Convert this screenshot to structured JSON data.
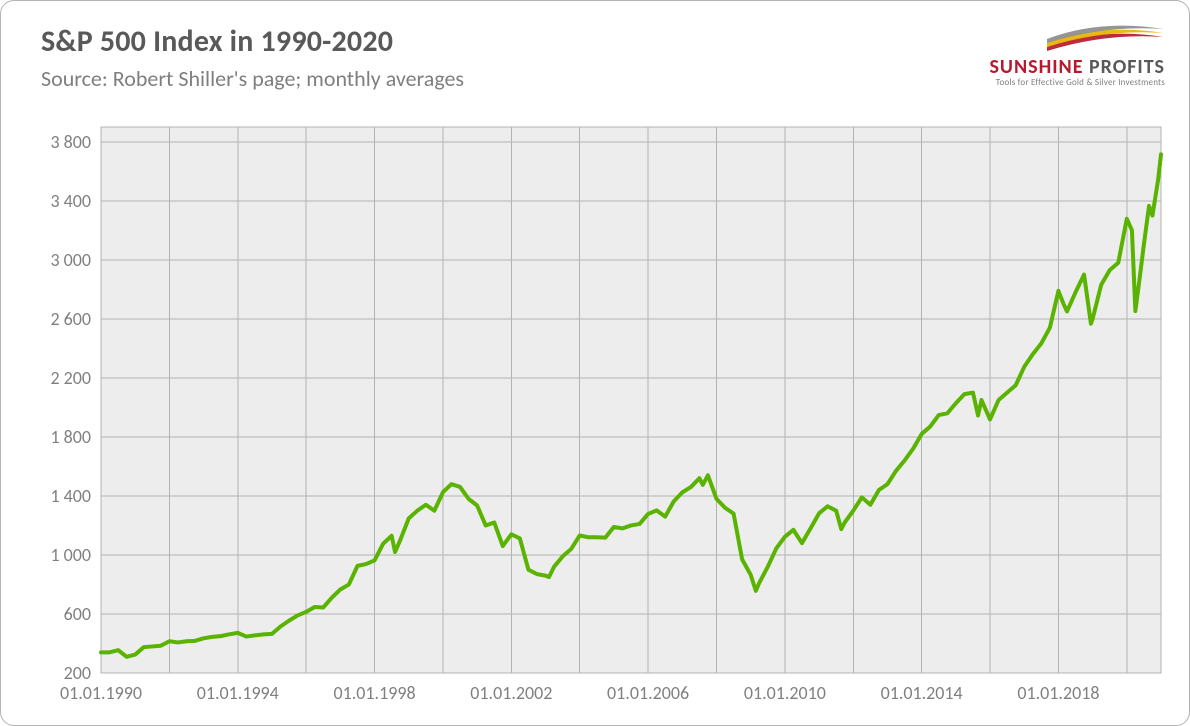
{
  "title": "S&P 500 Index in 1990-2020",
  "subtitle": "Source: Robert Shiller's page; monthly averages",
  "logo": {
    "line1_a": "SUNSHINE ",
    "line1_b": "PROFITS",
    "tagline": "Tools for Effective Gold & Silver Investments",
    "swoosh_colors": [
      "#b8192d",
      "#e8b400",
      "#8c8c8c"
    ]
  },
  "chart": {
    "type": "line",
    "background_color": "#ededed",
    "grid_color": "#b3b3b3",
    "line_color": "#59b300",
    "line_width": 4,
    "text_color": "#7f7f7f",
    "axis_fontsize": 18,
    "y": {
      "min": 200,
      "max": 3900,
      "ticks": [
        200,
        600,
        1000,
        1400,
        1800,
        2200,
        2600,
        3000,
        3400,
        3800
      ]
    },
    "x": {
      "min": 1990.0,
      "max": 2021.0,
      "ticks": [
        1990,
        1994,
        1998,
        2002,
        2006,
        2010,
        2014,
        2018
      ],
      "tick_labels": [
        "01.01.1990",
        "01.01.1994",
        "01.01.1998",
        "01.01.2002",
        "01.01.2006",
        "01.01.2010",
        "01.01.2014",
        "01.01.2018"
      ],
      "gridlines": [
        1990,
        1992,
        1994,
        1996,
        1998,
        2000,
        2002,
        2004,
        2006,
        2008,
        2010,
        2012,
        2014,
        2016,
        2018,
        2020
      ]
    },
    "series": [
      {
        "x": 1990.0,
        "y": 340
      },
      {
        "x": 1990.25,
        "y": 340
      },
      {
        "x": 1990.5,
        "y": 355
      },
      {
        "x": 1990.75,
        "y": 310
      },
      {
        "x": 1991.0,
        "y": 325
      },
      {
        "x": 1991.25,
        "y": 375
      },
      {
        "x": 1991.5,
        "y": 380
      },
      {
        "x": 1991.75,
        "y": 385
      },
      {
        "x": 1992.0,
        "y": 415
      },
      {
        "x": 1992.25,
        "y": 407
      },
      {
        "x": 1992.5,
        "y": 415
      },
      {
        "x": 1992.75,
        "y": 418
      },
      {
        "x": 1993.0,
        "y": 435
      },
      {
        "x": 1993.25,
        "y": 445
      },
      {
        "x": 1993.5,
        "y": 450
      },
      {
        "x": 1993.75,
        "y": 462
      },
      {
        "x": 1994.0,
        "y": 472
      },
      {
        "x": 1994.25,
        "y": 447
      },
      {
        "x": 1994.5,
        "y": 455
      },
      {
        "x": 1994.75,
        "y": 462
      },
      {
        "x": 1995.0,
        "y": 465
      },
      {
        "x": 1995.25,
        "y": 515
      },
      {
        "x": 1995.5,
        "y": 555
      },
      {
        "x": 1995.75,
        "y": 590
      },
      {
        "x": 1996.0,
        "y": 614
      },
      {
        "x": 1996.25,
        "y": 647
      },
      {
        "x": 1996.5,
        "y": 644
      },
      {
        "x": 1996.75,
        "y": 710
      },
      {
        "x": 1997.0,
        "y": 766
      },
      {
        "x": 1997.25,
        "y": 800
      },
      {
        "x": 1997.5,
        "y": 926
      },
      {
        "x": 1997.75,
        "y": 938
      },
      {
        "x": 1998.0,
        "y": 963
      },
      {
        "x": 1998.25,
        "y": 1076
      },
      {
        "x": 1998.5,
        "y": 1130
      },
      {
        "x": 1998.6,
        "y": 1020
      },
      {
        "x": 1998.75,
        "y": 1100
      },
      {
        "x": 1999.0,
        "y": 1248
      },
      {
        "x": 1999.25,
        "y": 1300
      },
      {
        "x": 1999.5,
        "y": 1340
      },
      {
        "x": 1999.75,
        "y": 1300
      },
      {
        "x": 2000.0,
        "y": 1425
      },
      {
        "x": 2000.25,
        "y": 1480
      },
      {
        "x": 2000.5,
        "y": 1461
      },
      {
        "x": 2000.75,
        "y": 1380
      },
      {
        "x": 2001.0,
        "y": 1335
      },
      {
        "x": 2001.25,
        "y": 1200
      },
      {
        "x": 2001.5,
        "y": 1220
      },
      {
        "x": 2001.75,
        "y": 1060
      },
      {
        "x": 2002.0,
        "y": 1140
      },
      {
        "x": 2002.25,
        "y": 1112
      },
      {
        "x": 2002.5,
        "y": 900
      },
      {
        "x": 2002.75,
        "y": 870
      },
      {
        "x": 2003.0,
        "y": 860
      },
      {
        "x": 2003.1,
        "y": 850
      },
      {
        "x": 2003.25,
        "y": 920
      },
      {
        "x": 2003.5,
        "y": 990
      },
      {
        "x": 2003.75,
        "y": 1040
      },
      {
        "x": 2004.0,
        "y": 1132
      },
      {
        "x": 2004.25,
        "y": 1120
      },
      {
        "x": 2004.5,
        "y": 1120
      },
      {
        "x": 2004.75,
        "y": 1117
      },
      {
        "x": 2005.0,
        "y": 1190
      },
      {
        "x": 2005.25,
        "y": 1180
      },
      {
        "x": 2005.5,
        "y": 1200
      },
      {
        "x": 2005.75,
        "y": 1210
      },
      {
        "x": 2006.0,
        "y": 1278
      },
      {
        "x": 2006.25,
        "y": 1302
      },
      {
        "x": 2006.5,
        "y": 1260
      },
      {
        "x": 2006.75,
        "y": 1363
      },
      {
        "x": 2007.0,
        "y": 1424
      },
      {
        "x": 2007.25,
        "y": 1460
      },
      {
        "x": 2007.5,
        "y": 1520
      },
      {
        "x": 2007.6,
        "y": 1475
      },
      {
        "x": 2007.75,
        "y": 1540
      },
      {
        "x": 2008.0,
        "y": 1380
      },
      {
        "x": 2008.25,
        "y": 1320
      },
      {
        "x": 2008.5,
        "y": 1280
      },
      {
        "x": 2008.75,
        "y": 970
      },
      {
        "x": 2009.0,
        "y": 866
      },
      {
        "x": 2009.15,
        "y": 757
      },
      {
        "x": 2009.25,
        "y": 810
      },
      {
        "x": 2009.5,
        "y": 920
      },
      {
        "x": 2009.75,
        "y": 1045
      },
      {
        "x": 2010.0,
        "y": 1123
      },
      {
        "x": 2010.25,
        "y": 1170
      },
      {
        "x": 2010.5,
        "y": 1080
      },
      {
        "x": 2010.75,
        "y": 1180
      },
      {
        "x": 2011.0,
        "y": 1282
      },
      {
        "x": 2011.25,
        "y": 1330
      },
      {
        "x": 2011.5,
        "y": 1300
      },
      {
        "x": 2011.65,
        "y": 1175
      },
      {
        "x": 2011.75,
        "y": 1220
      },
      {
        "x": 2012.0,
        "y": 1300
      },
      {
        "x": 2012.25,
        "y": 1390
      },
      {
        "x": 2012.5,
        "y": 1340
      },
      {
        "x": 2012.75,
        "y": 1440
      },
      {
        "x": 2013.0,
        "y": 1480
      },
      {
        "x": 2013.25,
        "y": 1570
      },
      {
        "x": 2013.5,
        "y": 1640
      },
      {
        "x": 2013.75,
        "y": 1720
      },
      {
        "x": 2014.0,
        "y": 1820
      },
      {
        "x": 2014.25,
        "y": 1870
      },
      {
        "x": 2014.5,
        "y": 1948
      },
      {
        "x": 2014.75,
        "y": 1960
      },
      {
        "x": 2015.0,
        "y": 2028
      },
      {
        "x": 2015.25,
        "y": 2090
      },
      {
        "x": 2015.5,
        "y": 2100
      },
      {
        "x": 2015.65,
        "y": 1945
      },
      {
        "x": 2015.75,
        "y": 2050
      },
      {
        "x": 2016.0,
        "y": 1918
      },
      {
        "x": 2016.25,
        "y": 2050
      },
      {
        "x": 2016.5,
        "y": 2100
      },
      {
        "x": 2016.75,
        "y": 2150
      },
      {
        "x": 2017.0,
        "y": 2275
      },
      {
        "x": 2017.25,
        "y": 2360
      },
      {
        "x": 2017.5,
        "y": 2434
      },
      {
        "x": 2017.75,
        "y": 2540
      },
      {
        "x": 2018.0,
        "y": 2790
      },
      {
        "x": 2018.15,
        "y": 2700
      },
      {
        "x": 2018.25,
        "y": 2650
      },
      {
        "x": 2018.5,
        "y": 2780
      },
      {
        "x": 2018.75,
        "y": 2900
      },
      {
        "x": 2018.95,
        "y": 2567
      },
      {
        "x": 2019.0,
        "y": 2600
      },
      {
        "x": 2019.25,
        "y": 2830
      },
      {
        "x": 2019.5,
        "y": 2930
      },
      {
        "x": 2019.75,
        "y": 2980
      },
      {
        "x": 2020.0,
        "y": 3278
      },
      {
        "x": 2020.15,
        "y": 3200
      },
      {
        "x": 2020.25,
        "y": 2652
      },
      {
        "x": 2020.4,
        "y": 2920
      },
      {
        "x": 2020.5,
        "y": 3105
      },
      {
        "x": 2020.65,
        "y": 3365
      },
      {
        "x": 2020.75,
        "y": 3300
      },
      {
        "x": 2020.92,
        "y": 3550
      },
      {
        "x": 2021.0,
        "y": 3715
      }
    ]
  }
}
